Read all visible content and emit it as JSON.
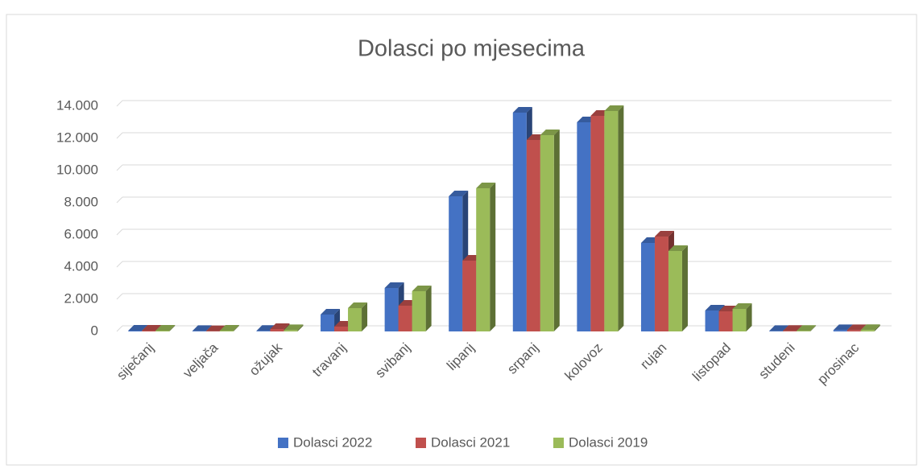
{
  "chart_data": {
    "type": "bar3d",
    "title": "Dolasci po mjesecima",
    "categories": [
      "siječanj",
      "veljača",
      "ožujak",
      "travanj",
      "svibanj",
      "lipanj",
      "srpanj",
      "kolovoz",
      "rujan",
      "listopad",
      "studeni",
      "prosinac"
    ],
    "series": [
      {
        "name": "Dolasci 2022",
        "color": "#4472c4",
        "values": [
          50,
          30,
          40,
          1050,
          2700,
          8400,
          13600,
          13000,
          5500,
          1300,
          30,
          80
        ]
      },
      {
        "name": "Dolasci 2021",
        "color": "#c0504d",
        "values": [
          50,
          20,
          150,
          300,
          1600,
          4400,
          11900,
          13400,
          5900,
          1250,
          40,
          80
        ]
      },
      {
        "name": "Dolasci 2019",
        "color": "#9bbb59",
        "values": [
          50,
          50,
          80,
          1450,
          2500,
          8900,
          12200,
          13700,
          5000,
          1400,
          40,
          90
        ]
      }
    ],
    "ylim": [
      0,
      14000
    ],
    "yticks": [
      0,
      {
        "value": 2000,
        "label": "2.000"
      },
      {
        "value": 4000,
        "label": "4.000"
      },
      {
        "value": 6000,
        "label": "6.000"
      },
      {
        "value": 8000,
        "label": "8.000"
      },
      {
        "value": 10000,
        "label": "10.000"
      },
      {
        "value": 12000,
        "label": "12.000"
      },
      {
        "value": 14000,
        "label": "14.000"
      }
    ],
    "grid": true,
    "legend": "bottom"
  }
}
